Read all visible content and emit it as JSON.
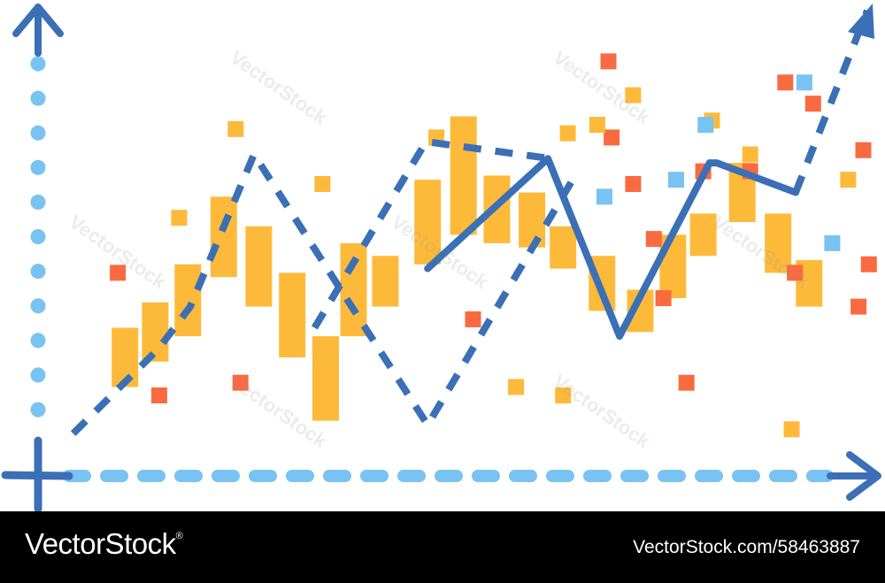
{
  "colors": {
    "axis": "#78C3F2",
    "axis_arrow": "#3B6FB6",
    "line": "#3B6FB6",
    "bars": "#FDBA3A",
    "red_square": "#FA6A40",
    "yellow_square": "#FDBA3A",
    "blue_square": "#78C3F2",
    "footer_bg": "#000000",
    "footer_text": "#FFFFFF"
  },
  "icons": {
    "y_axis_arrow": "arrow-up-icon",
    "x_axis_arrow": "arrow-right-icon",
    "trend_arrow": "arrow-up-right-icon"
  },
  "watermark": {
    "text": "VectorStock"
  },
  "footer": {
    "brand": "VectorStock",
    "brand_reg": "®",
    "image_ref": "VectorStock.com/58463887"
  },
  "chart_data": {
    "type": "bar",
    "title": "",
    "xlabel": "",
    "ylabel": "",
    "grid": false,
    "ylim": [
      0,
      100
    ],
    "xlim": [
      0,
      100
    ],
    "bars": [
      {
        "x": 6.8,
        "low": 11,
        "high": 25
      },
      {
        "x": 10.6,
        "low": 17,
        "high": 31
      },
      {
        "x": 14.7,
        "low": 23,
        "high": 40
      },
      {
        "x": 19.2,
        "low": 37,
        "high": 56
      },
      {
        "x": 23.6,
        "low": 30,
        "high": 49
      },
      {
        "x": 27.8,
        "low": 18,
        "high": 38
      },
      {
        "x": 32.0,
        "low": 3,
        "high": 23
      },
      {
        "x": 35.5,
        "low": 23,
        "high": 45
      },
      {
        "x": 39.5,
        "low": 30,
        "high": 42
      },
      {
        "x": 44.8,
        "low": 40,
        "high": 60
      },
      {
        "x": 49.3,
        "low": 47,
        "high": 75
      },
      {
        "x": 53.5,
        "low": 45,
        "high": 61
      },
      {
        "x": 57.9,
        "low": 44,
        "high": 57
      },
      {
        "x": 61.8,
        "low": 39,
        "high": 49
      },
      {
        "x": 66.7,
        "low": 29,
        "high": 42
      },
      {
        "x": 71.5,
        "low": 24,
        "high": 34
      },
      {
        "x": 75.6,
        "low": 32,
        "high": 47
      },
      {
        "x": 79.4,
        "low": 42,
        "high": 52
      },
      {
        "x": 84.3,
        "low": 50,
        "high": 64
      },
      {
        "x": 88.8,
        "low": 38,
        "high": 52
      },
      {
        "x": 92.7,
        "low": 30,
        "high": 41
      }
    ],
    "series": [
      {
        "style": "dashed",
        "x": [
          0.3,
          11,
          15,
          23,
          44.8,
          63
        ],
        "y": [
          0,
          20,
          30,
          66,
          2,
          60
        ]
      },
      {
        "style": "dashed",
        "x": [
          30.6,
          44.6,
          60.3
        ],
        "y": [
          25,
          69,
          65
        ]
      },
      {
        "style": "solid",
        "x": [
          44.8,
          59.9,
          68.9,
          80.2,
          81.1,
          91
        ],
        "y": [
          39,
          65,
          23,
          64,
          64,
          57
        ]
      },
      {
        "style": "dashed",
        "x": [
          91,
          100
        ],
        "y": [
          57,
          100
        ]
      }
    ],
    "scatter": [
      {
        "kind": "red",
        "x": [
          5.9,
          11.1,
          21.3,
          50.5,
          67.5,
          67.9,
          70.6,
          73.2,
          74.4,
          77.3,
          79.4,
          85.3,
          89.7,
          90.9,
          93.2,
          98.9,
          99.5,
          100.2
        ],
        "y": [
          38,
          9,
          12,
          27,
          88,
          70,
          59,
          46,
          32,
          12,
          62,
          62,
          83,
          38,
          78,
          30,
          67,
          40
        ]
      },
      {
        "kind": "yellow",
        "x": [
          13.6,
          20.7,
          31.6,
          45.9,
          55.9,
          61.8,
          62.4,
          66.1,
          70.6,
          80.5,
          85.3,
          90.5,
          97.6
        ],
        "y": [
          51,
          72,
          59,
          70,
          11,
          9,
          71,
          73,
          80,
          74,
          66,
          1,
          60
        ]
      },
      {
        "kind": "blue",
        "x": [
          67.0,
          76.0,
          79.7,
          92.1,
          95.6
        ],
        "y": [
          56,
          60,
          73,
          83,
          45
        ]
      }
    ]
  }
}
